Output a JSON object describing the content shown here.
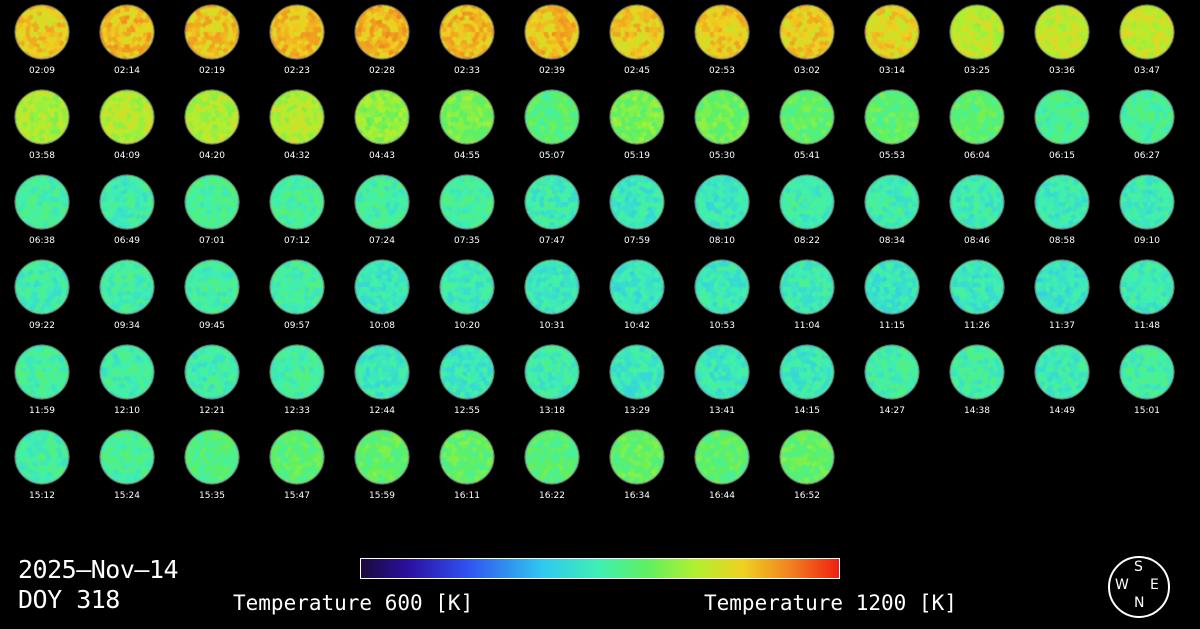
{
  "date": "2025–Nov–14",
  "doy": "DOY 318",
  "colorbar": {
    "min_label": "Temperature 600 [K]",
    "max_label": "Temperature 1200 [K]",
    "min_value": 600,
    "max_value": 1200
  },
  "compass": {
    "top": "S",
    "left": "W",
    "right": "E",
    "bottom": "N"
  },
  "thumbnails": [
    {
      "time": "02:09",
      "level": 0.8
    },
    {
      "time": "02:14",
      "level": 0.82
    },
    {
      "time": "02:19",
      "level": 0.81
    },
    {
      "time": "02:23",
      "level": 0.82
    },
    {
      "time": "02:28",
      "level": 0.83
    },
    {
      "time": "02:33",
      "level": 0.82
    },
    {
      "time": "02:39",
      "level": 0.82
    },
    {
      "time": "02:45",
      "level": 0.8
    },
    {
      "time": "02:53",
      "level": 0.8
    },
    {
      "time": "03:02",
      "level": 0.8
    },
    {
      "time": "03:14",
      "level": 0.78
    },
    {
      "time": "03:25",
      "level": 0.72
    },
    {
      "time": "03:36",
      "level": 0.72
    },
    {
      "time": "03:47",
      "level": 0.73
    },
    {
      "time": "03:58",
      "level": 0.69
    },
    {
      "time": "04:09",
      "level": 0.71
    },
    {
      "time": "04:20",
      "level": 0.7
    },
    {
      "time": "04:32",
      "level": 0.7
    },
    {
      "time": "04:43",
      "level": 0.66
    },
    {
      "time": "04:55",
      "level": 0.63
    },
    {
      "time": "05:07",
      "level": 0.57
    },
    {
      "time": "05:19",
      "level": 0.63
    },
    {
      "time": "05:30",
      "level": 0.61
    },
    {
      "time": "05:41",
      "level": 0.59
    },
    {
      "time": "05:53",
      "level": 0.59
    },
    {
      "time": "06:04",
      "level": 0.58
    },
    {
      "time": "06:15",
      "level": 0.53
    },
    {
      "time": "06:27",
      "level": 0.53
    },
    {
      "time": "06:38",
      "level": 0.52
    },
    {
      "time": "06:49",
      "level": 0.5
    },
    {
      "time": "07:01",
      "level": 0.53
    },
    {
      "time": "07:12",
      "level": 0.53
    },
    {
      "time": "07:24",
      "level": 0.51
    },
    {
      "time": "07:35",
      "level": 0.52
    },
    {
      "time": "07:47",
      "level": 0.49
    },
    {
      "time": "07:59",
      "level": 0.48
    },
    {
      "time": "08:10",
      "level": 0.48
    },
    {
      "time": "08:22",
      "level": 0.5
    },
    {
      "time": "08:34",
      "level": 0.5
    },
    {
      "time": "08:46",
      "level": 0.49
    },
    {
      "time": "08:58",
      "level": 0.48
    },
    {
      "time": "09:10",
      "level": 0.49
    },
    {
      "time": "09:22",
      "level": 0.5
    },
    {
      "time": "09:34",
      "level": 0.51
    },
    {
      "time": "09:45",
      "level": 0.51
    },
    {
      "time": "09:57",
      "level": 0.51
    },
    {
      "time": "10:08",
      "level": 0.48
    },
    {
      "time": "10:20",
      "level": 0.49
    },
    {
      "time": "10:31",
      "level": 0.48
    },
    {
      "time": "10:42",
      "level": 0.47
    },
    {
      "time": "10:53",
      "level": 0.48
    },
    {
      "time": "11:04",
      "level": 0.49
    },
    {
      "time": "11:15",
      "level": 0.47
    },
    {
      "time": "11:26",
      "level": 0.48
    },
    {
      "time": "11:37",
      "level": 0.47
    },
    {
      "time": "11:48",
      "level": 0.49
    },
    {
      "time": "11:59",
      "level": 0.52
    },
    {
      "time": "12:10",
      "level": 0.5
    },
    {
      "time": "12:21",
      "level": 0.5
    },
    {
      "time": "12:33",
      "level": 0.52
    },
    {
      "time": "12:44",
      "level": 0.48
    },
    {
      "time": "12:55",
      "level": 0.48
    },
    {
      "time": "13:18",
      "level": 0.5
    },
    {
      "time": "13:29",
      "level": 0.48
    },
    {
      "time": "13:41",
      "level": 0.48
    },
    {
      "time": "14:15",
      "level": 0.48
    },
    {
      "time": "14:27",
      "level": 0.51
    },
    {
      "time": "14:38",
      "level": 0.51
    },
    {
      "time": "14:49",
      "level": 0.49
    },
    {
      "time": "15:01",
      "level": 0.51
    },
    {
      "time": "15:12",
      "level": 0.51
    },
    {
      "time": "15:24",
      "level": 0.53
    },
    {
      "time": "15:35",
      "level": 0.56
    },
    {
      "time": "15:47",
      "level": 0.58
    },
    {
      "time": "15:59",
      "level": 0.59
    },
    {
      "time": "16:11",
      "level": 0.59
    },
    {
      "time": "16:22",
      "level": 0.57
    },
    {
      "time": "16:34",
      "level": 0.6
    },
    {
      "time": "16:44",
      "level": 0.58
    },
    {
      "time": "16:52",
      "level": 0.6
    }
  ]
}
